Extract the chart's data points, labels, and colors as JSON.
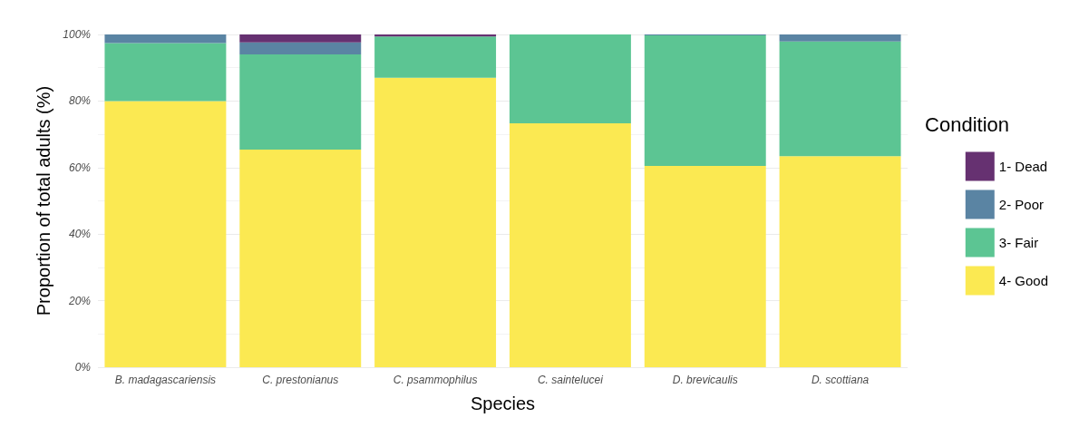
{
  "chart_data": {
    "type": "bar",
    "stacked": true,
    "xlabel": "Species",
    "ylabel": "Proportion of total adults (%)",
    "legend_title": "Condition",
    "legend": "right",
    "grid": "y",
    "categories": [
      "B. madagascariensis",
      "C. prestonianus",
      "C. psammophilus",
      "C. saintelucei",
      "D. brevicaulis",
      "D. scottiana"
    ],
    "ylim": [
      0,
      100
    ],
    "yticks": [
      {
        "value": 0,
        "label": "0%"
      },
      {
        "value": 20,
        "label": "20%"
      },
      {
        "value": 40,
        "label": "40%"
      },
      {
        "value": 60,
        "label": "60%"
      },
      {
        "value": 80,
        "label": "80%"
      },
      {
        "value": 100,
        "label": "100%"
      }
    ],
    "series": [
      {
        "name": "4- Good",
        "color": "#fbe952",
        "values": [
          80,
          65.4,
          87,
          73.3,
          60.5,
          63.4
        ]
      },
      {
        "name": "3- Fair",
        "color": "#5cc593",
        "values": [
          17.4,
          28.6,
          12.4,
          26.7,
          39.2,
          34.5
        ]
      },
      {
        "name": "2- Poor",
        "color": "#5a84a3",
        "values": [
          2.6,
          3.6,
          0,
          0,
          0.3,
          2.1
        ]
      },
      {
        "name": "1- Dead",
        "color": "#663171",
        "values": [
          0,
          2.4,
          0.6,
          0,
          0,
          0
        ]
      }
    ]
  }
}
